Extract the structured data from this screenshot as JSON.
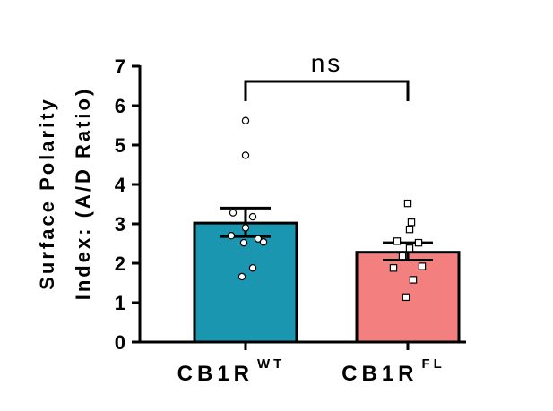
{
  "chart_data": {
    "type": "bar",
    "ylabel": [
      "Surface Polarity",
      "Index: (A/D Ratio)"
    ],
    "ylim": [
      0,
      7
    ],
    "yticks": [
      0,
      1,
      2,
      3,
      4,
      5,
      6,
      7
    ],
    "categories": [
      {
        "base": "CB1R",
        "sup": "WT"
      },
      {
        "base": "CB1R",
        "sup": "FL"
      }
    ],
    "series": [
      {
        "category": 0,
        "mean": 3.02,
        "sem_low": 2.68,
        "sem_high": 3.4,
        "color": "#1a96b0",
        "marker": "circle",
        "points": [
          5.62,
          4.74,
          3.28,
          3.18,
          2.9,
          2.7,
          2.62,
          2.54,
          2.52,
          1.88,
          1.66
        ]
      },
      {
        "category": 1,
        "mean": 2.28,
        "sem_low": 2.08,
        "sem_high": 2.52,
        "color": "#f47f7f",
        "marker": "square",
        "points": [
          3.52,
          3.04,
          2.86,
          2.56,
          2.52,
          2.38,
          2.18,
          1.92,
          1.88,
          1.58,
          1.14
        ]
      }
    ],
    "annotation": {
      "text": "ns",
      "between": [
        0,
        1
      ]
    }
  }
}
